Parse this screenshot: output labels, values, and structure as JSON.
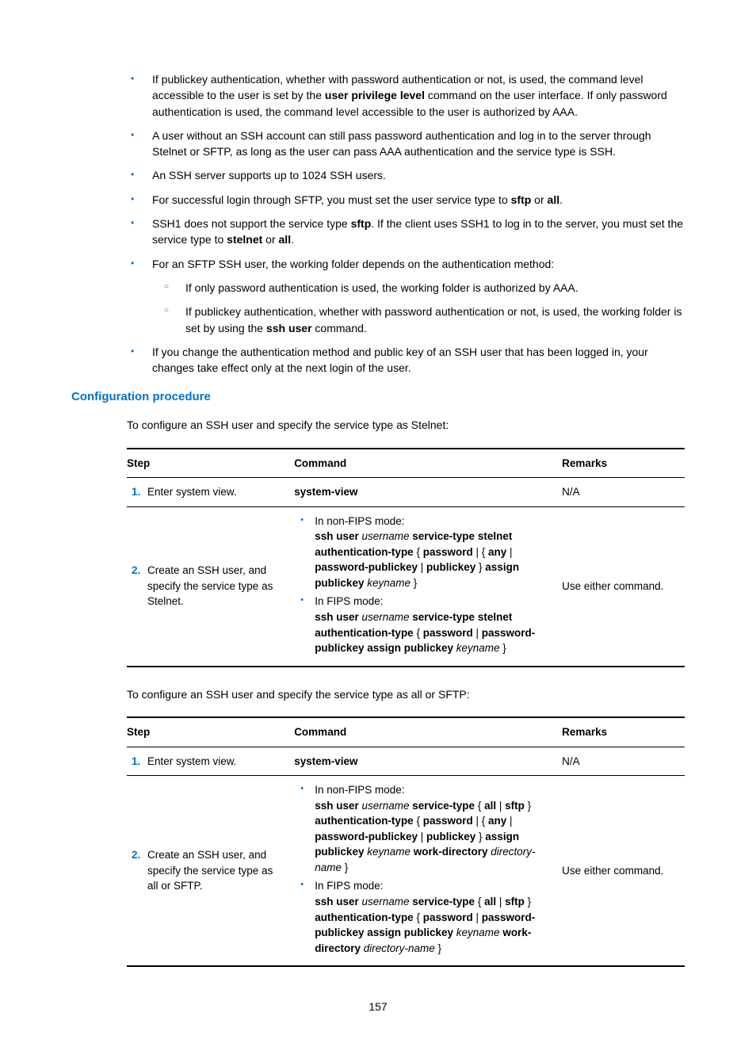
{
  "bullets": {
    "b1a": "If publickey authentication, whether with password authentication or not, is used, the command level accessible to the user is set by the ",
    "b1b": "user privilege level",
    "b1c": " command on the user interface. If only password authentication is used, the command level accessible to the user is authorized by AAA.",
    "b2": "A user without an SSH account can still pass password authentication and log in to the server through Stelnet or SFTP, as long as the user can pass AAA authentication and the service type is SSH.",
    "b3": "An SSH server supports up to 1024 SSH users.",
    "b4a": "For successful login through SFTP, you must set the user service type to ",
    "b4b": "sftp",
    "b4c": " or ",
    "b4d": "all",
    "b4e": ".",
    "b5a": "SSH1 does not support the service type ",
    "b5b": "sftp",
    "b5c": ". If the client uses SSH1 to log in to the server, you must set the service type to ",
    "b5d": "stelnet",
    "b5e": " or ",
    "b5f": "all",
    "b5g": ".",
    "b6": "For an SFTP SSH user, the working folder depends on the authentication method:",
    "b6s1": "If only password authentication is used, the working folder is authorized by AAA.",
    "b6s2a": "If publickey authentication, whether with password authentication or not, is used, the working folder is set by using the ",
    "b6s2b": "ssh user",
    "b6s2c": " command.",
    "b7": "If you change the authentication method and public key of an SSH user that has been logged in, your changes take effect only at the next login of the user."
  },
  "section_title": "Configuration procedure",
  "intro1": "To configure an SSH user and specify the service type as Stelnet:",
  "intro2": "To configure an SSH user and specify the service type as all or SFTP:",
  "headers": {
    "step": "Step",
    "cmd": "Command",
    "rem": "Remarks"
  },
  "t1": {
    "r1": {
      "num": "1.",
      "step": "Enter system view.",
      "cmd": "system-view",
      "rem": "N/A"
    },
    "r2": {
      "num": "2.",
      "step": "Create an SSH user, and specify the service type as Stelnet.",
      "nonfips_label": "In non-FIPS mode:",
      "fips_label": "In FIPS mode:",
      "rem": "Use either command."
    }
  },
  "t2": {
    "r1": {
      "num": "1.",
      "step": "Enter system view.",
      "cmd": "system-view",
      "rem": "N/A"
    },
    "r2": {
      "num": "2.",
      "step": "Create an SSH user, and specify the service type as all or SFTP.",
      "nonfips_label": "In non-FIPS mode:",
      "fips_label": "In FIPS mode:",
      "rem": "Use either command."
    }
  },
  "syntax": {
    "ssh_user": "ssh user",
    "username": " username ",
    "svc_stelnet": "service-type stelnet authentication-type",
    "svc_all_sftp": "service-type",
    "all": "all",
    "sftp": "sftp",
    "auth_type": "authentication-type",
    "password": "password",
    "any": "any",
    "pwd_pubkey": "password-publickey",
    "publickey": "publickey",
    "assign_pubkey": "assign publickey",
    "keyname": " keyname ",
    "keyname_end": " keyname",
    "work_dir": "work-directory",
    "dirname": " directory-name ",
    "dirname_end": " directory-name",
    "pwd_pubkey_assign": "password-publickey assign publickey",
    "open": " { ",
    "close": " }",
    "close_sp": " } ",
    "pipe": " | ",
    "open2": "{ "
  },
  "page_number": "157"
}
